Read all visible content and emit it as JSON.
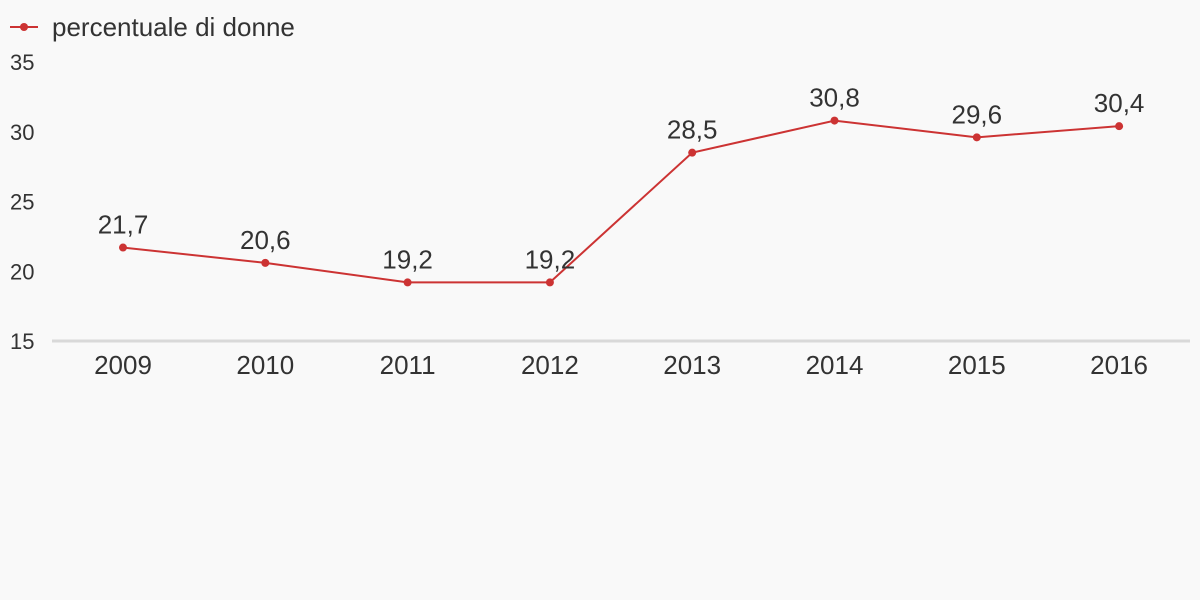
{
  "colors": {
    "series": "#cc3333",
    "baseline": "#d9d9d9",
    "text": "#333333",
    "background": "#f9f9f9"
  },
  "chart_data": {
    "type": "line",
    "categories": [
      "2009",
      "2010",
      "2011",
      "2012",
      "2013",
      "2014",
      "2015",
      "2016"
    ],
    "series": [
      {
        "name": "percentuale di donne",
        "values": [
          21.7,
          20.6,
          19.2,
          19.2,
          28.5,
          30.8,
          29.6,
          30.4
        ],
        "labels": [
          "21,7",
          "20,6",
          "19,2",
          "19,2",
          "28,5",
          "30,8",
          "29,6",
          "30,4"
        ]
      }
    ],
    "ylim": [
      15,
      35
    ],
    "yticks": [
      "15",
      "20",
      "25",
      "30",
      "35"
    ],
    "legend": "top-left",
    "grid": false
  }
}
